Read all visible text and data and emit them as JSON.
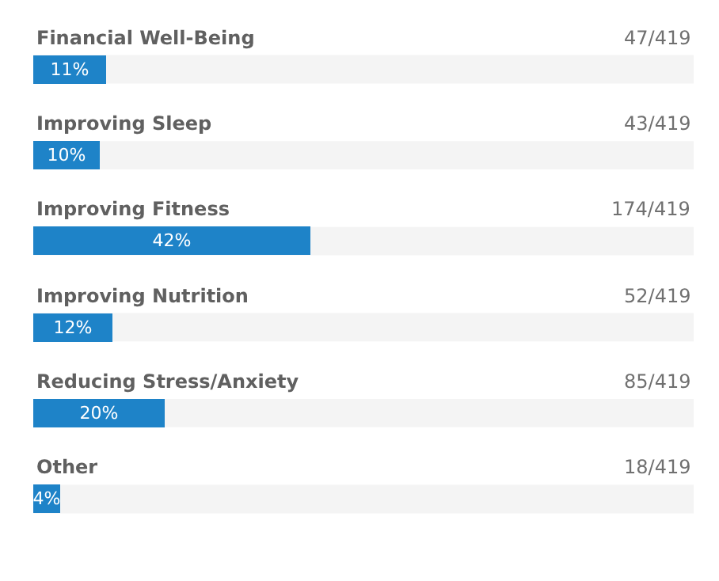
{
  "chart_data": {
    "type": "bar",
    "orientation": "horizontal",
    "categories": [
      "Financial Well-Being",
      "Improving Sleep",
      "Improving Fitness",
      "Improving Nutrition",
      "Reducing Stress/Anxiety",
      "Other"
    ],
    "values": [
      11,
      10,
      42,
      12,
      20,
      4
    ],
    "value_labels": [
      "11%",
      "10%",
      "42%",
      "12%",
      "20%",
      "4%"
    ],
    "color": "#1e83c8",
    "xlim": [
      0,
      100
    ],
    "tick_labels": false,
    "grid": false,
    "legend": false,
    "annotations": [
      "47/419",
      "43/419",
      "174/419",
      "52/419",
      "85/419",
      "18/419"
    ]
  }
}
